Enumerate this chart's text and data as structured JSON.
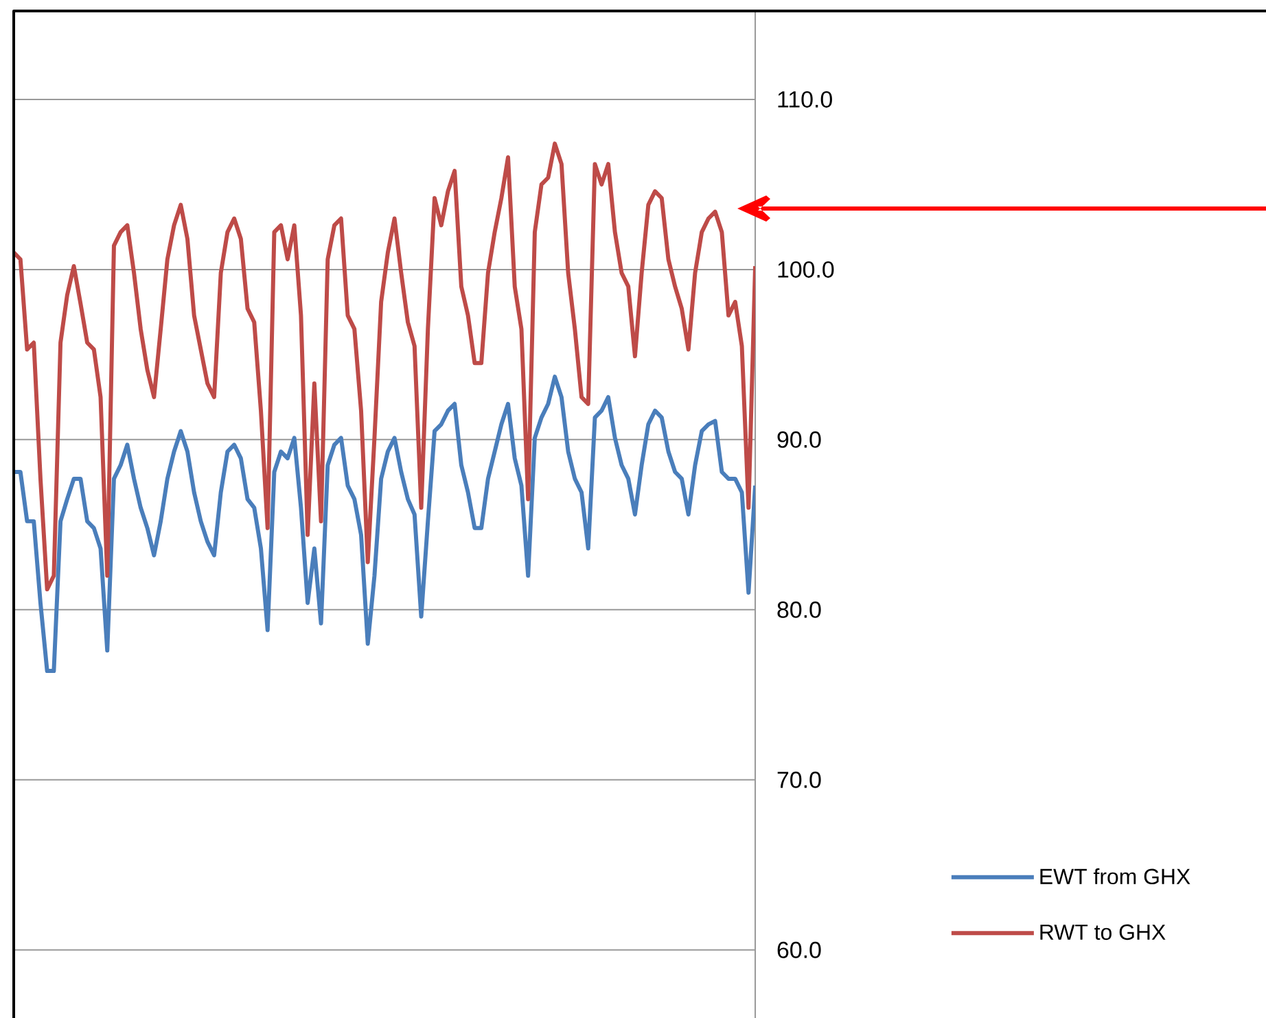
{
  "chart_data": {
    "type": "line",
    "categories": [
      null,
      null,
      null,
      null,
      null,
      null,
      null,
      null,
      null,
      null,
      null,
      null,
      null,
      null,
      null,
      null,
      null,
      null,
      null,
      null,
      null,
      null,
      null,
      null,
      null,
      null,
      null,
      null,
      null,
      null,
      null,
      null,
      null,
      null,
      null,
      null,
      null,
      null,
      null,
      null,
      null,
      null,
      null,
      null,
      null,
      null,
      null,
      null,
      null,
      null,
      null,
      null,
      null,
      null,
      null,
      null,
      null,
      null,
      null,
      null,
      null,
      null,
      null,
      null,
      null,
      null,
      null,
      null,
      null,
      null,
      null,
      null,
      null,
      null,
      null,
      null,
      null,
      null,
      null,
      null,
      null,
      null,
      null,
      null,
      null,
      null,
      null,
      null,
      null,
      null,
      null,
      null,
      null,
      null,
      null,
      null,
      null,
      null,
      null,
      null,
      null,
      null,
      null,
      null,
      null,
      null,
      null,
      null,
      null,
      null,
      null,
      null
    ],
    "series": [
      {
        "name": "EWT from GHX",
        "color": "#4a7ebb",
        "values": [
          88.1,
          88.1,
          85.2,
          85.2,
          80.4,
          76.4,
          76.4,
          85.2,
          86.5,
          87.7,
          87.7,
          85.2,
          84.8,
          83.6,
          77.6,
          87.7,
          88.5,
          89.7,
          87.7,
          86.0,
          84.8,
          83.2,
          85.2,
          87.7,
          89.3,
          90.5,
          89.3,
          86.9,
          85.2,
          84.0,
          83.2,
          86.9,
          89.3,
          89.7,
          88.9,
          86.5,
          86.0,
          83.6,
          78.8,
          88.1,
          89.3,
          88.9,
          90.1,
          86.0,
          80.4,
          83.6,
          79.2,
          88.5,
          89.7,
          90.1,
          87.3,
          86.5,
          84.4,
          78.0,
          82.0,
          87.7,
          89.3,
          90.1,
          88.1,
          86.5,
          85.6,
          79.6,
          85.2,
          90.5,
          90.9,
          91.7,
          92.1,
          88.5,
          86.9,
          84.8,
          84.8,
          87.7,
          89.3,
          90.9,
          92.1,
          88.9,
          87.3,
          82.0,
          90.1,
          91.3,
          92.1,
          93.7,
          92.5,
          89.3,
          87.7,
          86.9,
          83.6,
          91.3,
          91.7,
          92.5,
          90.1,
          88.5,
          87.7,
          85.6,
          88.5,
          90.9,
          91.7,
          91.3,
          89.3,
          88.1,
          87.7,
          85.6,
          88.5,
          90.5,
          90.9,
          91.1,
          88.1,
          87.7,
          87.7,
          86.9,
          81.0,
          87.3
        ]
      },
      {
        "name": "RWT to GHX",
        "color": "#be4b48",
        "values": [
          101.0,
          100.6,
          95.3,
          95.7,
          87.7,
          81.2,
          82.0,
          95.7,
          98.5,
          100.2,
          98.0,
          95.7,
          95.3,
          92.5,
          82.0,
          101.4,
          102.2,
          102.6,
          99.8,
          96.5,
          94.1,
          92.5,
          96.5,
          100.6,
          102.6,
          103.8,
          101.8,
          97.3,
          95.3,
          93.3,
          92.5,
          99.8,
          102.2,
          103.0,
          101.8,
          97.7,
          96.9,
          91.7,
          84.8,
          102.2,
          102.6,
          100.6,
          102.6,
          97.3,
          84.4,
          93.3,
          85.2,
          100.6,
          102.6,
          103.0,
          97.3,
          96.5,
          91.7,
          82.8,
          90.1,
          98.1,
          101.0,
          103.0,
          99.8,
          96.9,
          95.5,
          86.0,
          96.5,
          104.2,
          102.6,
          104.6,
          105.8,
          99.0,
          97.3,
          94.5,
          94.5,
          99.8,
          102.2,
          104.2,
          106.6,
          99.0,
          96.5,
          86.5,
          102.2,
          105.0,
          105.4,
          107.4,
          106.2,
          99.8,
          96.5,
          92.5,
          92.1,
          106.2,
          105.0,
          106.2,
          102.2,
          99.8,
          99.0,
          94.9,
          99.8,
          103.8,
          104.6,
          104.2,
          100.6,
          99.0,
          97.7,
          95.3,
          99.8,
          102.2,
          103.0,
          103.4,
          102.2,
          97.3,
          98.1,
          95.5,
          86.0,
          100.2
        ]
      }
    ],
    "ylim": [
      56,
      115.2
    ],
    "yticks": [
      {
        "value": 60,
        "label": "60.0"
      },
      {
        "value": 70,
        "label": "70.0"
      },
      {
        "value": 80,
        "label": "80.0"
      },
      {
        "value": 90,
        "label": "90.0"
      },
      {
        "value": 100,
        "label": "100.0"
      },
      {
        "value": 110,
        "label": "110.0"
      }
    ],
    "grid": "y",
    "legend": "right",
    "tick_labels": "y"
  }
}
